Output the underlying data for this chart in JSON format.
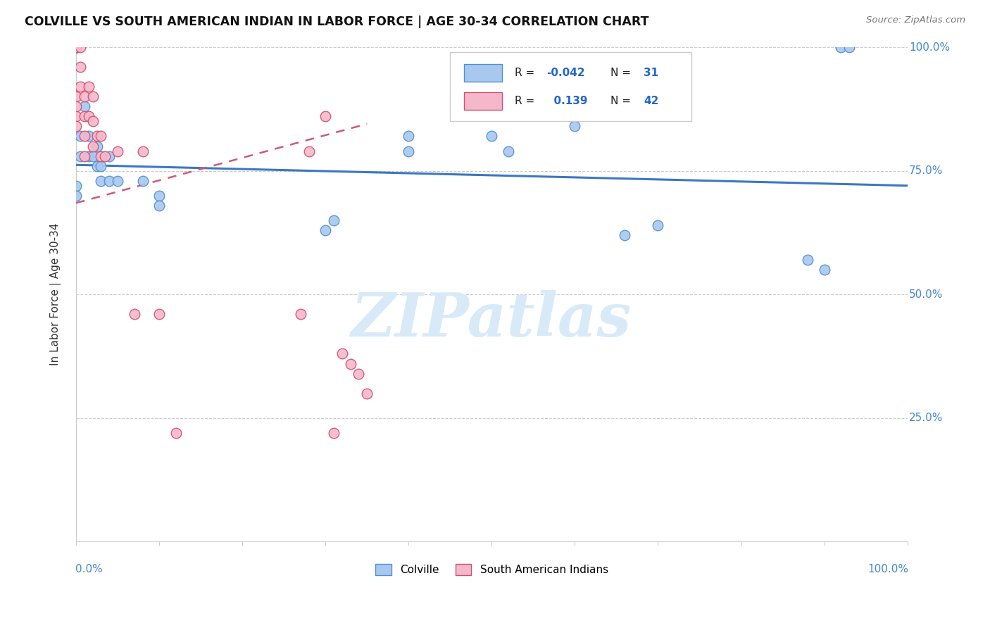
{
  "title": "COLVILLE VS SOUTH AMERICAN INDIAN IN LABOR FORCE | AGE 30-34 CORRELATION CHART",
  "source": "Source: ZipAtlas.com",
  "ylabel": "In Labor Force | Age 30-34",
  "colville_color": "#a8c8f0",
  "colville_edge": "#5090d0",
  "sa_color": "#f5b8cb",
  "sa_edge": "#d05070",
  "trend_colville_color": "#3a78c0",
  "trend_sa_color": "#d05878",
  "background_color": "#ffffff",
  "grid_color": "#cccccc",
  "colville_x": [
    0.0,
    0.0,
    0.005,
    0.005,
    0.01,
    0.015,
    0.015,
    0.02,
    0.025,
    0.025,
    0.03,
    0.03,
    0.04,
    0.04,
    0.05,
    0.08,
    0.1,
    0.1,
    0.3,
    0.31,
    0.4,
    0.4,
    0.5,
    0.52,
    0.6,
    0.66,
    0.7,
    0.88,
    0.9,
    0.92,
    0.93
  ],
  "colville_y": [
    0.72,
    0.7,
    0.82,
    0.78,
    0.88,
    0.82,
    0.78,
    0.78,
    0.8,
    0.76,
    0.76,
    0.73,
    0.78,
    0.73,
    0.73,
    0.73,
    0.7,
    0.68,
    0.63,
    0.65,
    0.82,
    0.79,
    0.82,
    0.79,
    0.84,
    0.62,
    0.64,
    0.57,
    0.55,
    1.0,
    1.0
  ],
  "sa_x": [
    0.0,
    0.0,
    0.0,
    0.0,
    0.0,
    0.0,
    0.0,
    0.0,
    0.0,
    0.0,
    0.0,
    0.0,
    0.0,
    0.005,
    0.005,
    0.005,
    0.01,
    0.01,
    0.01,
    0.01,
    0.015,
    0.015,
    0.02,
    0.02,
    0.02,
    0.025,
    0.03,
    0.03,
    0.035,
    0.05,
    0.07,
    0.08,
    0.1,
    0.12,
    0.27,
    0.28,
    0.3,
    0.31,
    0.32,
    0.33,
    0.34,
    0.35
  ],
  "sa_y": [
    1.0,
    1.0,
    1.0,
    1.0,
    1.0,
    1.0,
    1.0,
    1.0,
    1.0,
    0.9,
    0.88,
    0.86,
    0.84,
    1.0,
    0.96,
    0.92,
    0.9,
    0.86,
    0.82,
    0.78,
    0.92,
    0.86,
    0.9,
    0.85,
    0.8,
    0.82,
    0.82,
    0.78,
    0.78,
    0.79,
    0.46,
    0.79,
    0.46,
    0.22,
    0.46,
    0.79,
    0.86,
    0.22,
    0.38,
    0.36,
    0.34,
    0.3
  ],
  "colville_trend_x": [
    0.0,
    1.0
  ],
  "colville_trend_y": [
    0.762,
    0.72
  ],
  "sa_trend_x": [
    0.0,
    0.35
  ],
  "sa_trend_y": [
    0.685,
    0.845
  ],
  "xlim": [
    0.0,
    1.0
  ],
  "ylim": [
    0.0,
    1.0
  ],
  "ytick_positions": [
    0.0,
    0.25,
    0.5,
    0.75,
    1.0
  ],
  "ytick_labels": [
    "",
    "25.0%",
    "50.0%",
    "75.0%",
    "100.0%"
  ],
  "legend_R1": "R = -0.042",
  "legend_N1": "N = 31",
  "legend_R2": "R =   0.139",
  "legend_N2": "N = 42",
  "watermark_text": "ZIPatlas",
  "watermark_color": "#d8eaf8",
  "bottom_legend_labels": [
    "Colville",
    "South American Indians"
  ]
}
